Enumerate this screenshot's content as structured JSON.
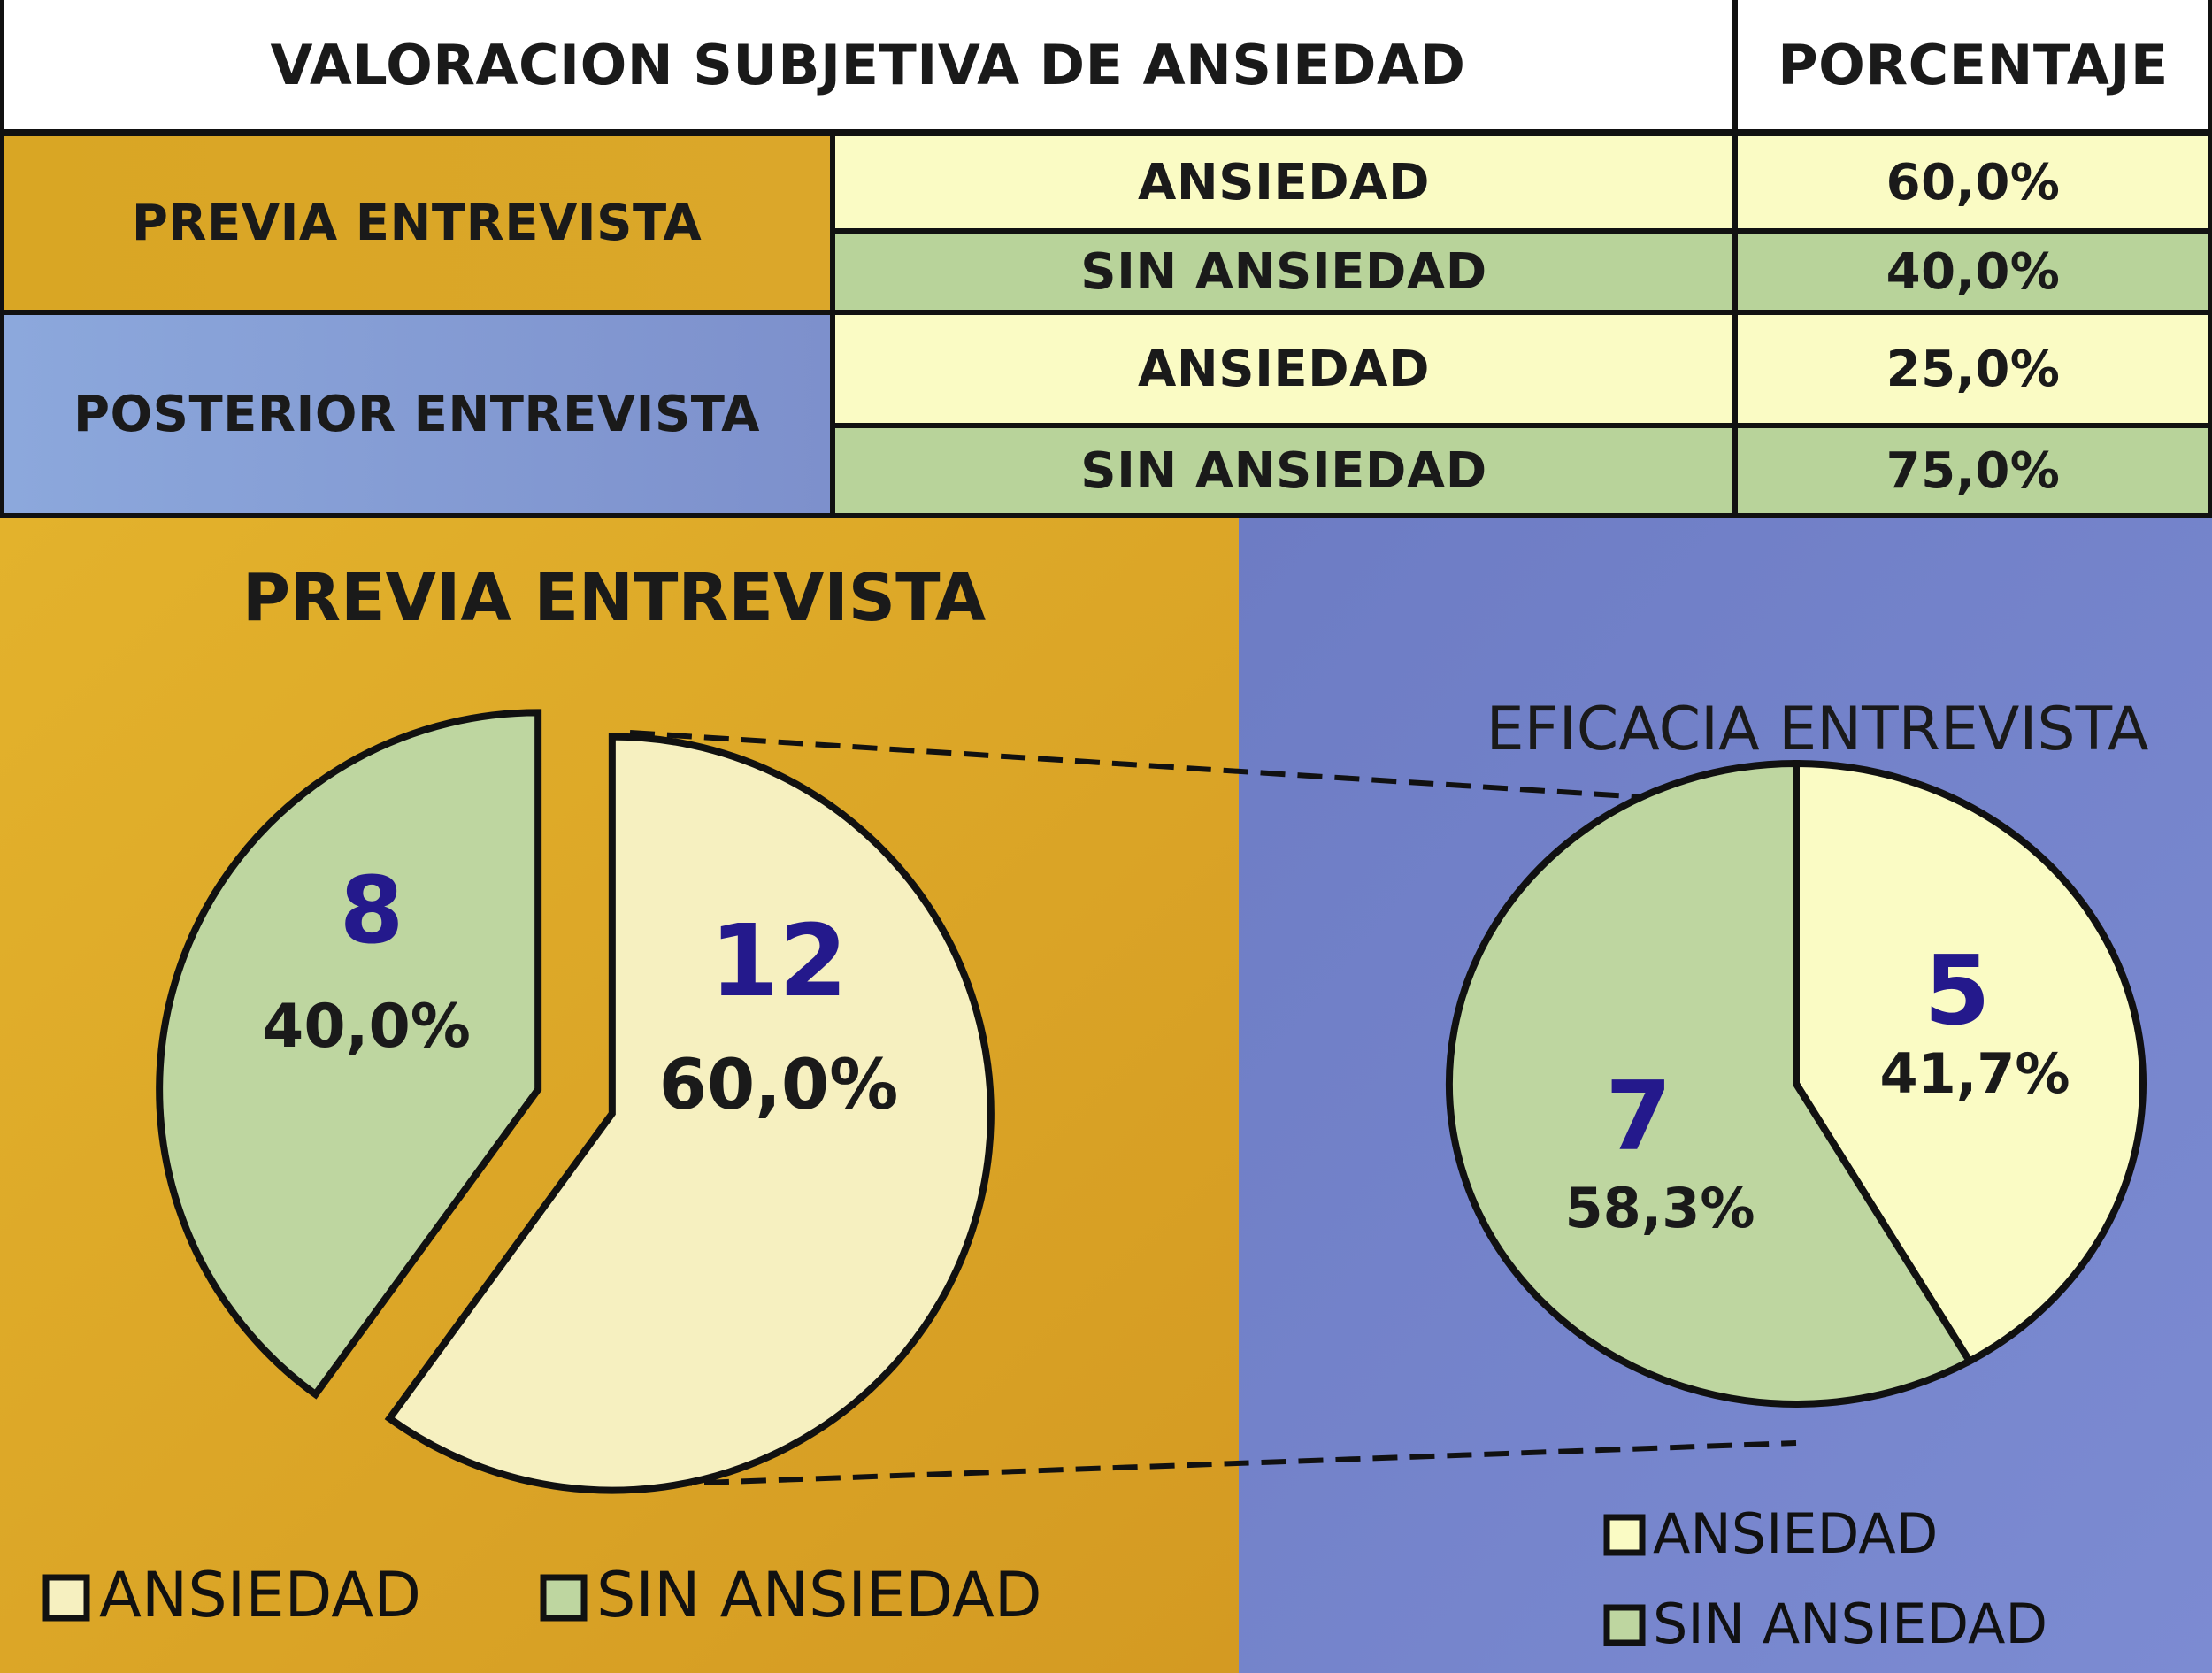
{
  "table": {
    "header_main": "VALORACION SUBJETIVA DE ANSIEDAD",
    "header_pct": "PORCENTAJE",
    "groups": [
      {
        "label": "PREVIA ENTREVISTA",
        "rows": [
          {
            "label": "ANSIEDAD",
            "value": "60,0%"
          },
          {
            "label": "SIN ANSIEDAD",
            "value": "40,0%"
          }
        ]
      },
      {
        "label": "POSTERIOR  ENTREVISTA",
        "rows": [
          {
            "label": "ANSIEDAD",
            "value": "25,0%"
          },
          {
            "label": "SIN ANSIEDAD",
            "value": "75,0%"
          }
        ]
      }
    ]
  },
  "colors": {
    "orange": "#d9a324",
    "blue": "#7b8dcc",
    "yellow": "#fafbc4",
    "green": "#b8d39a",
    "pie_yellow": "#f6f0c0",
    "pie_green": "#bed6a0",
    "number_blue": "#24198c"
  },
  "chart_data": [
    {
      "type": "pie",
      "title": "PREVIA ENTREVISTA",
      "slices": [
        {
          "label": "ANSIEDAD",
          "value": 12,
          "percent": "60,0%"
        },
        {
          "label": "SIN ANSIEDAD",
          "value": 8,
          "percent": "40,0%"
        }
      ],
      "legend": [
        "ANSIEDAD",
        "SIN ANSIEDAD"
      ],
      "legend_position": "bottom"
    },
    {
      "type": "pie",
      "title": "EFICACIA ENTREVISTA",
      "slices": [
        {
          "label": "ANSIEDAD",
          "value": 5,
          "percent": "41,7%"
        },
        {
          "label": "SIN ANSIEDAD",
          "value": 7,
          "percent": "58,3%"
        }
      ],
      "legend": [
        "ANSIEDAD",
        "SIN ANSIEDAD"
      ],
      "legend_position": "bottom-right"
    }
  ]
}
